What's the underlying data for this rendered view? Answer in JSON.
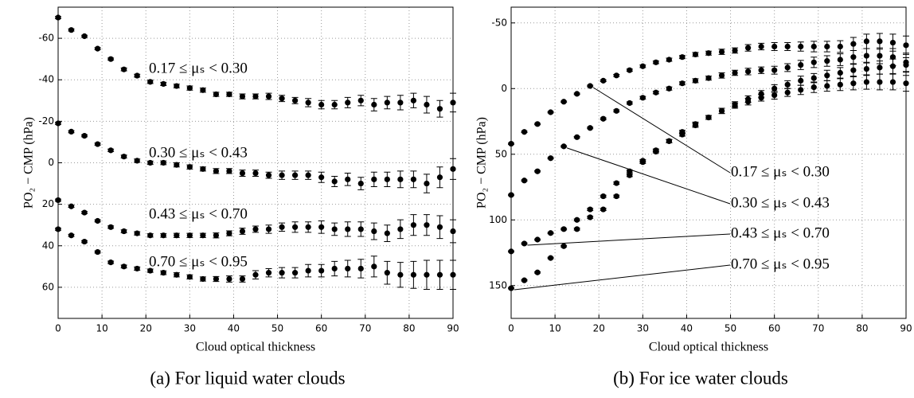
{
  "chart_data": [
    {
      "type": "scatter",
      "xlabel": "Cloud optical thickness",
      "ylabel": "PO₂ − CMP (hPa)",
      "caption": "(a) For liquid water clouds",
      "xlim": [
        0,
        90
      ],
      "xticks": [
        0,
        10,
        20,
        30,
        40,
        50,
        60,
        70,
        80,
        90
      ],
      "ylim": [
        -75,
        75
      ],
      "y_reversed": true,
      "yticks": [
        -60,
        -40,
        -20,
        0,
        20,
        40,
        60
      ],
      "grid": true,
      "x": [
        0,
        3,
        6,
        9,
        12,
        15,
        18,
        21,
        24,
        27,
        30,
        33,
        36,
        39,
        42,
        45,
        48,
        51,
        54,
        57,
        60,
        63,
        66,
        69,
        72,
        75,
        78,
        81,
        84,
        87,
        90
      ],
      "series": [
        {
          "name": "0.17 ≤ μₛ < 0.30",
          "color": "#000000",
          "values": [
            -70,
            -64,
            -61,
            -55,
            -50,
            -45,
            -42,
            -39,
            -38,
            -37,
            -36,
            -35,
            -33,
            -33,
            -32,
            -32,
            -32,
            -31,
            -30,
            -29,
            -28,
            -28,
            -29,
            -30,
            -28,
            -29,
            -29,
            -30,
            -28,
            -26,
            -29
          ],
          "errors": [
            0.5,
            0.5,
            0.5,
            0.5,
            0.5,
            0.7,
            0.7,
            0.8,
            0.8,
            0.9,
            1,
            1,
            1,
            1,
            1.2,
            1.2,
            1.5,
            1.5,
            1.5,
            2,
            2,
            2,
            2.5,
            2.5,
            3,
            3,
            3.5,
            3.5,
            4,
            4,
            4.5
          ]
        },
        {
          "name": "0.30 ≤ μₛ < 0.43",
          "color": "#000000",
          "values": [
            -19,
            -15,
            -13,
            -9,
            -6,
            -3,
            -1,
            0,
            0,
            1,
            2,
            3,
            4,
            4,
            5,
            5,
            6,
            6,
            6,
            6,
            7,
            9,
            8,
            10,
            8,
            8,
            8,
            8,
            10,
            7,
            3
          ],
          "errors": [
            0.5,
            0.5,
            0.5,
            0.5,
            0.6,
            0.7,
            0.8,
            0.8,
            0.9,
            1,
            1,
            1,
            1.2,
            1.2,
            1.5,
            1.5,
            1.5,
            2,
            2,
            2,
            2.5,
            2.5,
            3,
            3,
            3.5,
            3.5,
            4,
            4,
            4.5,
            5,
            5
          ]
        },
        {
          "name": "0.43 ≤ μₛ < 0.70",
          "color": "#000000",
          "values": [
            18,
            21,
            24,
            28,
            31,
            33,
            34,
            35,
            35,
            35,
            35,
            35,
            35,
            34,
            33,
            32,
            32,
            31,
            31,
            31,
            31,
            32,
            32,
            32,
            33,
            34,
            32,
            30,
            30,
            31,
            33
          ],
          "errors": [
            0.5,
            0.5,
            0.5,
            0.5,
            0.6,
            0.7,
            0.8,
            0.8,
            0.9,
            1,
            1,
            1,
            1.2,
            1.2,
            1.5,
            1.5,
            2,
            2,
            2.5,
            2.5,
            3,
            3,
            3.5,
            3.5,
            4,
            4,
            4.5,
            5,
            5,
            5.5,
            5.5
          ]
        },
        {
          "name": "0.70 ≤ μₛ < 0.95",
          "color": "#000000",
          "values": [
            32,
            35,
            38,
            43,
            48,
            50,
            51,
            52,
            53,
            54,
            55,
            56,
            56,
            56,
            56,
            54,
            53,
            53,
            53,
            52,
            52,
            51,
            51,
            51,
            50,
            53,
            54,
            54,
            54,
            54,
            54
          ],
          "errors": [
            0.5,
            0.5,
            0.5,
            0.5,
            0.6,
            0.7,
            0.8,
            0.8,
            0.9,
            1,
            1,
            1,
            1.2,
            1.5,
            1.5,
            2,
            2,
            2.5,
            2.5,
            3,
            3,
            3.5,
            4,
            4.5,
            5,
            5.5,
            6,
            6.5,
            7,
            7,
            7
          ]
        }
      ]
    },
    {
      "type": "scatter",
      "xlabel": "Cloud optical thickness",
      "ylabel": "PO₂ − CMP (hPa)",
      "caption": "(b) For ice water clouds",
      "xlim": [
        0,
        90
      ],
      "xticks": [
        0,
        10,
        20,
        30,
        40,
        50,
        60,
        70,
        80,
        90
      ],
      "ylim": [
        -62,
        175
      ],
      "y_reversed": true,
      "yticks": [
        -50,
        0,
        50,
        100,
        150
      ],
      "grid": true,
      "x": [
        0,
        3,
        6,
        9,
        12,
        15,
        18,
        21,
        24,
        27,
        30,
        33,
        36,
        39,
        42,
        45,
        48,
        51,
        54,
        57,
        60,
        63,
        66,
        69,
        72,
        75,
        78,
        81,
        84,
        87,
        90
      ],
      "series": [
        {
          "name": "0.17 ≤ μₛ < 0.30",
          "color": "#000000",
          "values": [
            42,
            33,
            27,
            18,
            10,
            4,
            -2,
            -6,
            -10,
            -14,
            -17,
            -20,
            -22,
            -24,
            -26,
            -27,
            -28,
            -29,
            -31,
            -32,
            -32,
            -32,
            -32,
            -32,
            -32,
            -32,
            -34,
            -36,
            -36,
            -35,
            -33
          ],
          "errors": [
            0.5,
            0.5,
            0.5,
            0.5,
            0.5,
            0.5,
            0.6,
            0.7,
            0.8,
            0.9,
            1,
            1,
            1.2,
            1.2,
            1.5,
            1.5,
            2,
            2,
            2.5,
            2.5,
            3,
            3,
            3.5,
            4,
            4,
            4.5,
            5,
            5.5,
            6,
            6.5,
            7
          ]
        },
        {
          "name": "0.30 ≤ μₛ < 0.43",
          "color": "#000000",
          "values": [
            81,
            70,
            63,
            53,
            44,
            37,
            30,
            23,
            17,
            11,
            7,
            3,
            0,
            -4,
            -6,
            -8,
            -10,
            -12,
            -13,
            -14,
            -14,
            -16,
            -18,
            -20,
            -21,
            -22,
            -24,
            -25,
            -25,
            -24,
            -20
          ],
          "errors": [
            0.5,
            0.5,
            0.5,
            0.5,
            0.5,
            0.5,
            0.6,
            0.7,
            0.8,
            0.9,
            1,
            1,
            1.2,
            1.2,
            1.5,
            1.5,
            2,
            2,
            2.5,
            2.5,
            3,
            3,
            3.5,
            4,
            4,
            4.5,
            5,
            5.5,
            6,
            6.5,
            7
          ]
        },
        {
          "name": "0.43 ≤ μₛ < 0.70",
          "color": "#000000",
          "values": [
            124,
            118,
            115,
            110,
            107,
            100,
            92,
            82,
            72,
            63,
            55,
            47,
            40,
            33,
            27,
            22,
            17,
            12,
            8,
            4,
            0,
            -3,
            -6,
            -8,
            -10,
            -12,
            -14,
            -15,
            -16,
            -17,
            -18
          ],
          "errors": [
            0.5,
            0.5,
            0.5,
            0.5,
            0.6,
            0.7,
            0.8,
            0.8,
            0.9,
            1,
            1,
            1,
            1.2,
            1.2,
            1.5,
            1.5,
            2,
            2,
            2.5,
            2.5,
            3,
            3,
            3.5,
            3.5,
            4,
            4,
            4.5,
            5,
            5,
            5.5,
            5.5
          ]
        },
        {
          "name": "0.70 ≤ μₛ < 0.95",
          "color": "#000000",
          "values": [
            152,
            146,
            140,
            129,
            120,
            107,
            98,
            92,
            82,
            66,
            56,
            48,
            40,
            35,
            28,
            22,
            17,
            13,
            10,
            7,
            5,
            3,
            1,
            -1,
            -2,
            -3,
            -4,
            -5,
            -5,
            -5,
            -4
          ],
          "errors": [
            0.5,
            0.5,
            0.5,
            0.5,
            0.6,
            0.7,
            0.8,
            0.8,
            0.9,
            1,
            1,
            1,
            1.2,
            1.2,
            1.5,
            1.5,
            2,
            2,
            2.5,
            2.5,
            3,
            3,
            3.5,
            4,
            4,
            4.5,
            5,
            5.5,
            6,
            6,
            6
          ]
        }
      ]
    }
  ]
}
